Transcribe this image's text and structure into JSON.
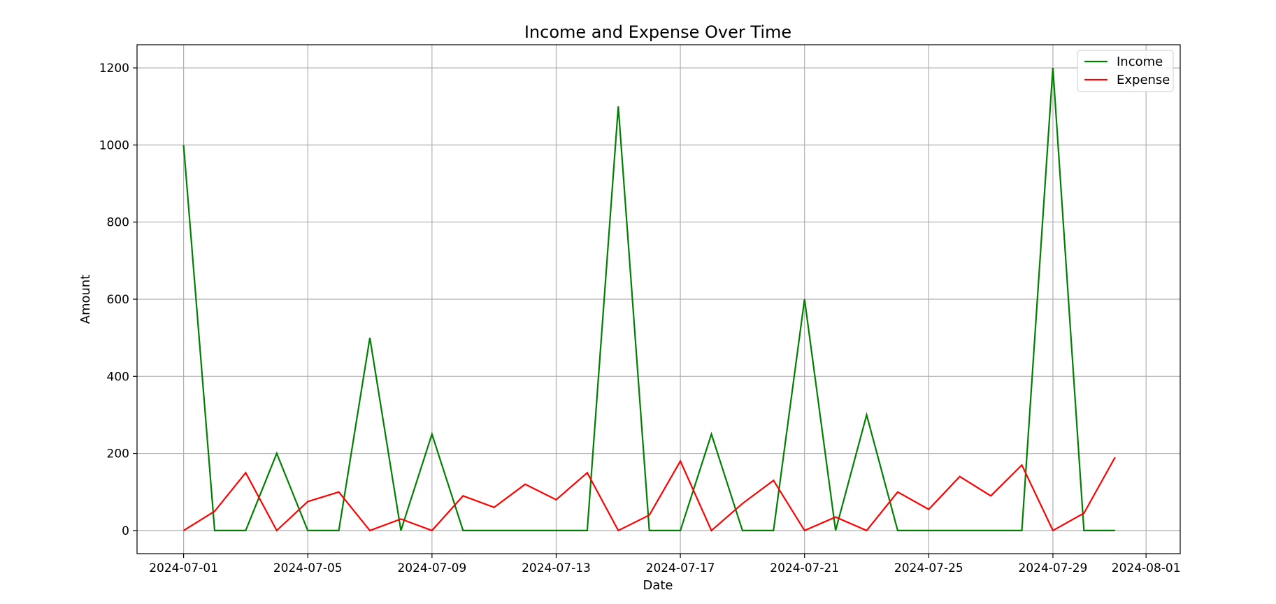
{
  "chart_data": {
    "type": "line",
    "title": "Income and Expense Over Time",
    "xlabel": "Date",
    "ylabel": "Amount",
    "x": [
      "2024-07-01",
      "2024-07-02",
      "2024-07-03",
      "2024-07-04",
      "2024-07-05",
      "2024-07-06",
      "2024-07-07",
      "2024-07-08",
      "2024-07-09",
      "2024-07-10",
      "2024-07-11",
      "2024-07-12",
      "2024-07-13",
      "2024-07-14",
      "2024-07-15",
      "2024-07-16",
      "2024-07-17",
      "2024-07-18",
      "2024-07-19",
      "2024-07-20",
      "2024-07-21",
      "2024-07-22",
      "2024-07-23",
      "2024-07-24",
      "2024-07-25",
      "2024-07-26",
      "2024-07-27",
      "2024-07-28",
      "2024-07-29",
      "2024-07-30",
      "2024-07-31"
    ],
    "series": [
      {
        "name": "Income",
        "color": "#008000",
        "values": [
          1000,
          0,
          0,
          200,
          0,
          0,
          500,
          0,
          250,
          0,
          0,
          0,
          0,
          0,
          1100,
          0,
          0,
          250,
          0,
          0,
          600,
          0,
          300,
          0,
          0,
          0,
          0,
          0,
          1200,
          0,
          0
        ]
      },
      {
        "name": "Expense",
        "color": "#ff0000",
        "values": [
          0,
          50,
          150,
          0,
          75,
          100,
          0,
          30,
          0,
          90,
          60,
          120,
          80,
          150,
          0,
          40,
          180,
          0,
          70,
          130,
          0,
          35,
          0,
          100,
          55,
          140,
          90,
          170,
          0,
          45,
          190
        ]
      }
    ],
    "xticks": [
      "2024-07-01",
      "2024-07-05",
      "2024-07-09",
      "2024-07-13",
      "2024-07-17",
      "2024-07-21",
      "2024-07-25",
      "2024-07-29",
      "2024-08-01"
    ],
    "yticks": [
      "0",
      "200",
      "400",
      "600",
      "800",
      "1000",
      "1200"
    ],
    "xlim": [
      "2024-06-29.5",
      "2024-08-02.1"
    ],
    "ylim": [
      -60,
      1260
    ],
    "grid": true,
    "legend_position": "top-right"
  }
}
